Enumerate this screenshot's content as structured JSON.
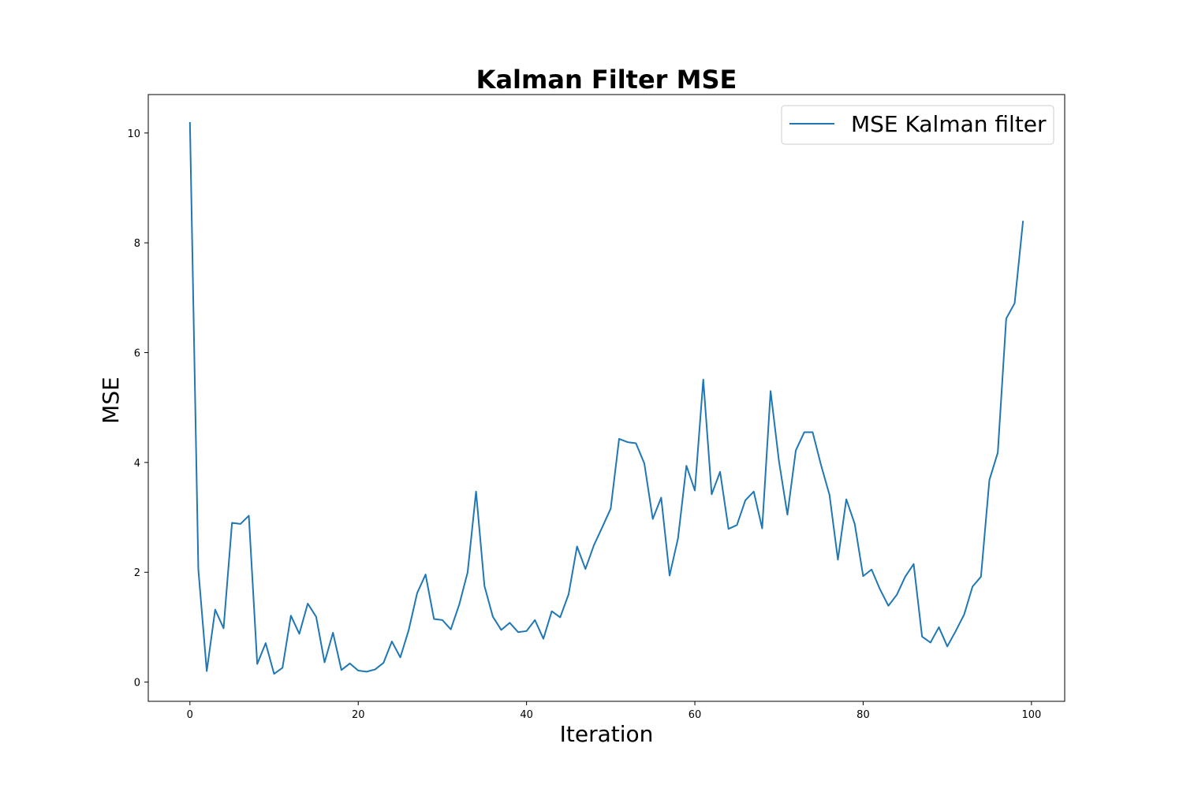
{
  "chart_data": {
    "type": "line",
    "title": "Kalman Filter MSE",
    "xlabel": "Iteration",
    "ylabel": "MSE",
    "xlim": [
      -4.95,
      103.95
    ],
    "ylim": [
      -0.35,
      10.7
    ],
    "xticks": [
      0,
      20,
      40,
      60,
      80,
      100
    ],
    "yticks": [
      0,
      2,
      4,
      6,
      8,
      10
    ],
    "grid": false,
    "legend_position": "upper right",
    "series": [
      {
        "name": "MSE Kalman filter",
        "color": "#1f77b4",
        "x": [
          0,
          1,
          2,
          3,
          4,
          5,
          6,
          7,
          8,
          9,
          10,
          11,
          12,
          13,
          14,
          15,
          16,
          17,
          18,
          19,
          20,
          21,
          22,
          23,
          24,
          25,
          26,
          27,
          28,
          29,
          30,
          31,
          32,
          33,
          34,
          35,
          36,
          37,
          38,
          39,
          40,
          41,
          42,
          43,
          44,
          45,
          46,
          47,
          48,
          49,
          50,
          51,
          52,
          53,
          54,
          55,
          56,
          57,
          58,
          59,
          60,
          61,
          62,
          63,
          64,
          65,
          66,
          67,
          68,
          69,
          70,
          71,
          72,
          73,
          74,
          75,
          76,
          77,
          78,
          79,
          80,
          81,
          82,
          83,
          84,
          85,
          86,
          87,
          88,
          89,
          90,
          91,
          92,
          93,
          94,
          95,
          96,
          97,
          98,
          99
        ],
        "y": [
          10.2,
          2.05,
          0.2,
          1.32,
          0.98,
          2.9,
          2.88,
          3.03,
          0.33,
          0.71,
          0.15,
          0.26,
          1.21,
          0.88,
          1.43,
          1.19,
          0.36,
          0.9,
          0.22,
          0.34,
          0.21,
          0.19,
          0.23,
          0.35,
          0.74,
          0.45,
          0.95,
          1.62,
          1.96,
          1.15,
          1.13,
          0.96,
          1.41,
          2.0,
          3.47,
          1.75,
          1.19,
          0.95,
          1.08,
          0.91,
          0.93,
          1.13,
          0.79,
          1.29,
          1.18,
          1.6,
          2.47,
          2.06,
          2.49,
          2.82,
          3.16,
          4.43,
          4.37,
          4.35,
          3.98,
          2.97,
          3.36,
          1.94,
          2.62,
          3.94,
          3.49,
          5.51,
          3.42,
          3.83,
          2.79,
          2.86,
          3.31,
          3.47,
          2.8,
          5.3,
          4.02,
          3.05,
          4.22,
          4.55,
          4.55,
          3.95,
          3.41,
          2.23,
          3.33,
          2.88,
          1.93,
          2.05,
          1.69,
          1.39,
          1.59,
          1.92,
          2.15,
          0.83,
          0.72,
          1.0,
          0.65,
          0.93,
          1.23,
          1.74,
          1.92,
          3.68,
          4.18,
          6.62,
          6.9,
          8.4
        ]
      }
    ]
  }
}
